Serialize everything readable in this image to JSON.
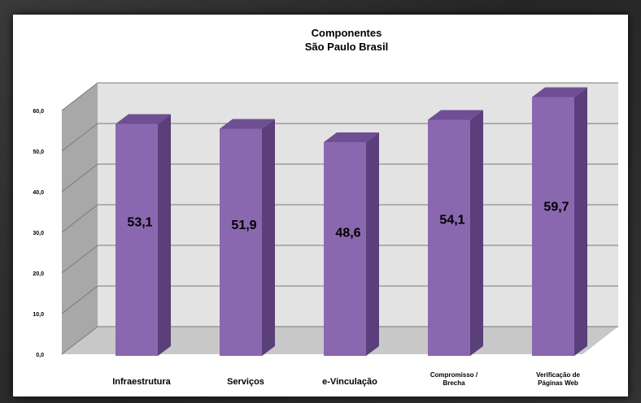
{
  "chart_data": {
    "type": "bar",
    "title": "Componentes",
    "subtitle": "São Paulo  Brasil",
    "categories": [
      [
        "Infraestrutura"
      ],
      [
        "Serviços"
      ],
      [
        "e-Vinculação"
      ],
      [
        "Compromisso /",
        "Brecha"
      ],
      [
        "Verificação de",
        "Páginas Web"
      ]
    ],
    "values": [
      53.1,
      51.9,
      48.6,
      54.1,
      59.7
    ],
    "data_labels": [
      "53,1",
      "51,9",
      "48,6",
      "54,1",
      "59,7"
    ],
    "yticks": [
      "0,0",
      "10,0",
      "20,0",
      "30,0",
      "40,0",
      "50,0",
      "60,0"
    ],
    "ylim": [
      0,
      60
    ],
    "grid": true,
    "three_d": true,
    "colors": {
      "bar_front": "#8a68b0",
      "bar_side": "#5a3f7a",
      "bar_top": "#6e4f94",
      "wall": "#e3e3e3",
      "side_wall": "#a8a8a8",
      "floor": "#c8c8c8",
      "grid": "#7a7a7a"
    }
  }
}
